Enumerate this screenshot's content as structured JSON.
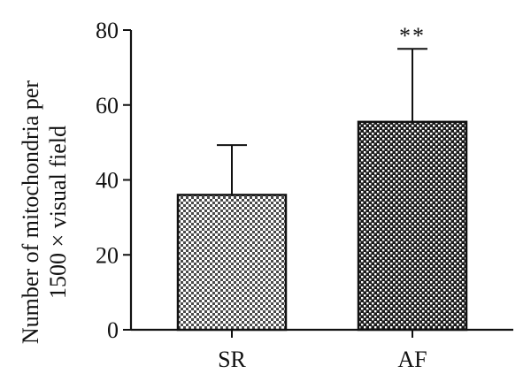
{
  "chart_data": {
    "type": "bar",
    "categories": [
      "SR",
      "AF"
    ],
    "values": [
      36,
      55.5
    ],
    "errors_upper": [
      13.3,
      19.5
    ],
    "significance": [
      "",
      "**"
    ],
    "ylabel_lines": [
      "Number of mitochondria per",
      "1500 × visual field"
    ],
    "ylim": [
      0,
      80
    ],
    "yticks": [
      "0",
      "20",
      "40",
      "60",
      "80"
    ],
    "xlabel": "",
    "grid": false,
    "bar_patterns": [
      "light-checker",
      "dark-checker"
    ]
  }
}
